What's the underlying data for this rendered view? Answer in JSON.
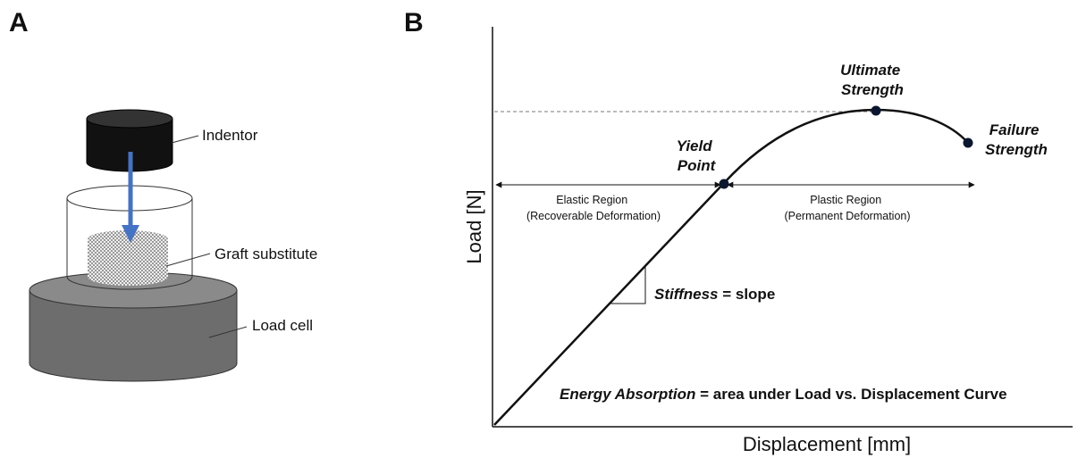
{
  "panel_a": {
    "label": "A",
    "parts": {
      "indentor": "Indentor",
      "graft": "Graft substitute",
      "load_cell": "Load cell"
    }
  },
  "panel_b": {
    "label": "B",
    "y_axis": "Load [N]",
    "x_axis": "Displacement [mm]",
    "ultimate_strength": [
      "Ultimate",
      "Strength"
    ],
    "failure_strength": [
      "Failure",
      "Strength"
    ],
    "yield_point": [
      "Yield",
      "Point"
    ],
    "elastic_region": [
      "Elastic Region",
      "(Recoverable Deformation)"
    ],
    "plastic_region": [
      "Plastic Region",
      "(Permanent Deformation)"
    ],
    "stiffness": [
      "Stiffness",
      " = slope"
    ],
    "energy": [
      "Energy Absorption",
      " = area under Load vs. Displacement Curve"
    ]
  }
}
